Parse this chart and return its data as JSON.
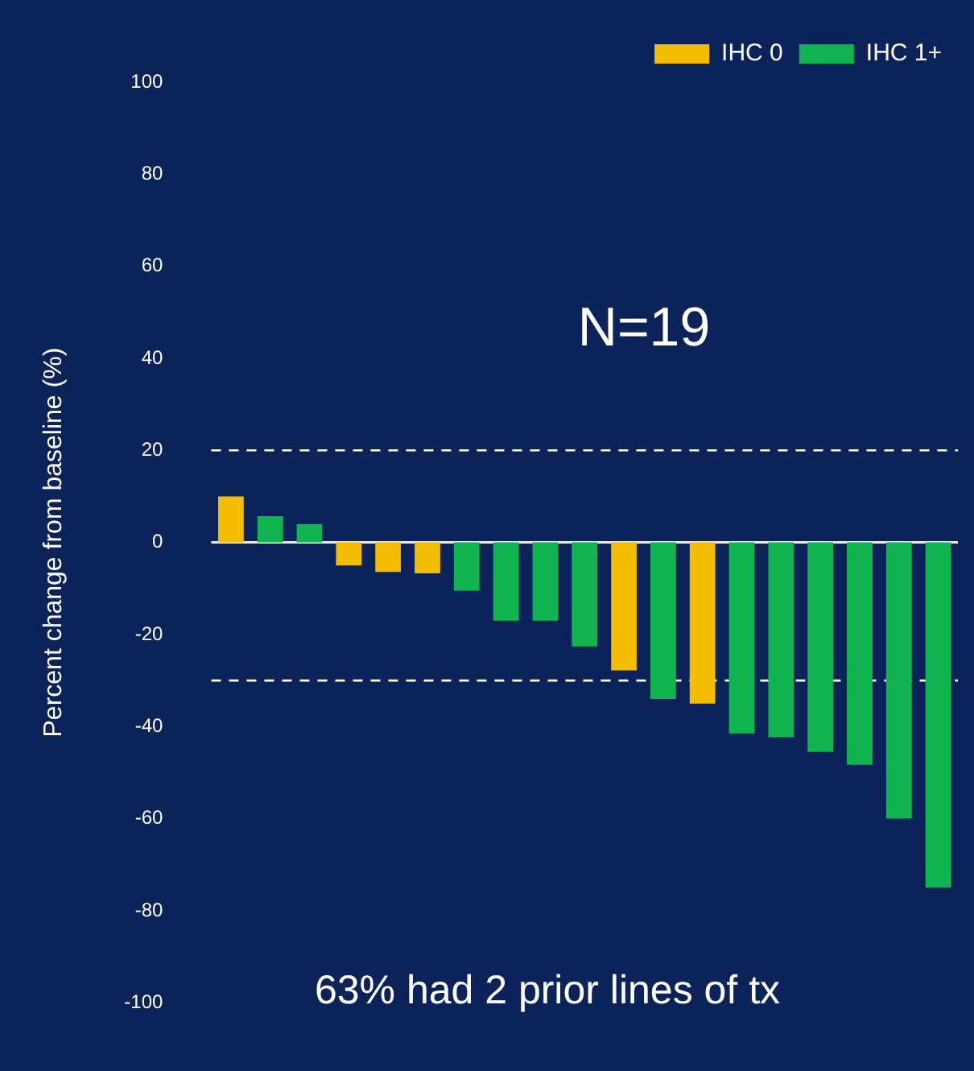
{
  "chart_data": {
    "type": "bar",
    "ylabel": "Percent change from baseline (%)",
    "categories": [
      null,
      null,
      null,
      null,
      null,
      null,
      null,
      null,
      null,
      null,
      null,
      null,
      null,
      null,
      null,
      null,
      null,
      null,
      null
    ],
    "series": [
      {
        "name": "IHC 0",
        "color": "#f5bd00",
        "values": [
          10,
          null,
          null,
          -5,
          -6.4,
          -6.7,
          null,
          null,
          null,
          null,
          -27.8,
          null,
          -35,
          null,
          null,
          null,
          null,
          null,
          null
        ]
      },
      {
        "name": "IHC 1+",
        "color": "#10b550",
        "values": [
          null,
          5.7,
          4,
          null,
          null,
          null,
          -10.5,
          -17,
          -17,
          -22.6,
          null,
          -34,
          null,
          -41.5,
          -42.3,
          -45.5,
          -48.3,
          -60,
          -75
        ]
      }
    ],
    "ylim": [
      -100,
      100
    ],
    "yticks": [
      -100,
      -80,
      -60,
      -40,
      -20,
      0,
      20,
      40,
      60,
      80,
      100
    ],
    "grid": false,
    "legend": "top right",
    "ref_lines": [
      {
        "axis": "y",
        "value": 20,
        "color": "#ffffff",
        "line_style": "dashed"
      },
      {
        "axis": "y",
        "value": -30,
        "color": "#ffffff",
        "line_style": "dashed"
      }
    ],
    "annotations": [
      "N=19",
      "63% had 2 prior lines of tx"
    ]
  }
}
